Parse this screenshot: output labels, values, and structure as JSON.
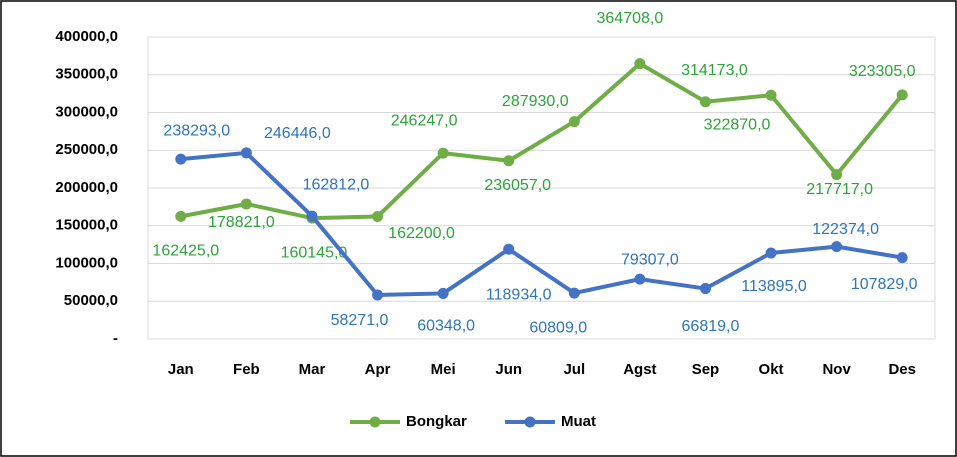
{
  "chart_data": {
    "type": "line",
    "categories": [
      "Jan",
      "Feb",
      "Mar",
      "Apr",
      "Mei",
      "Jun",
      "Jul",
      "Agst",
      "Sep",
      "Okt",
      "Nov",
      "Des"
    ],
    "series": [
      {
        "name": "Bongkar",
        "color": "#70ad47",
        "values": [
          162425,
          178821,
          160145,
          162200,
          246247,
          236057,
          287930,
          364708,
          314173,
          322870,
          217717,
          323305
        ],
        "value_labels": [
          "162425,0",
          "178821,0",
          "160145,0",
          "162200,0",
          "246247,0",
          "236057,0",
          "287930,0",
          "364708,0",
          "314173,0",
          "322870,0",
          "217717,0",
          "323305,0"
        ]
      },
      {
        "name": "Muat",
        "color": "#4472c4",
        "values": [
          238293,
          246446,
          162812,
          58271,
          60348,
          118934,
          60809,
          79307,
          66819,
          113895,
          122374,
          107829
        ],
        "value_labels": [
          "238293,0",
          "246446,0",
          "162812,0",
          "58271,0",
          "60348,0",
          "118934,0",
          "60809,0",
          "79307,0",
          "66819,0",
          "113895,0",
          "122374,0",
          "107829,0"
        ]
      }
    ],
    "ylim": [
      0,
      400000
    ],
    "yticks": [
      {
        "value": 0,
        "label": "-"
      },
      {
        "value": 50000,
        "label": "50000,0"
      },
      {
        "value": 100000,
        "label": "100000,0"
      },
      {
        "value": 150000,
        "label": "150000,0"
      },
      {
        "value": 200000,
        "label": "200000,0"
      },
      {
        "value": 250000,
        "label": "250000,0"
      },
      {
        "value": 300000,
        "label": "300000,0"
      },
      {
        "value": 350000,
        "label": "350000,0"
      },
      {
        "value": 400000,
        "label": "400000,0"
      }
    ],
    "grid": true,
    "legend": "bottom"
  }
}
